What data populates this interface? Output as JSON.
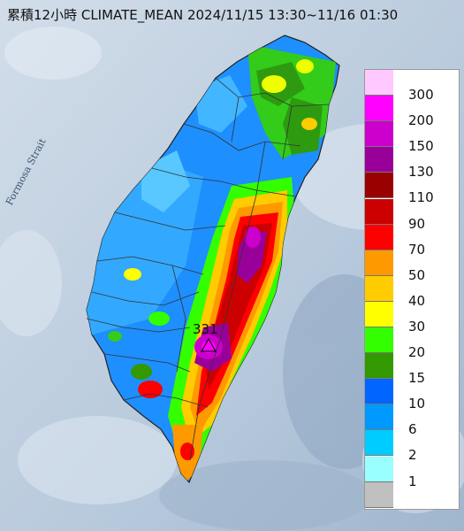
{
  "title": "累積12小時 CLIMATE_MEAN 2024/11/15 13:30~11/16 01:30",
  "strait_label": "Formosa Strait",
  "peak_value": "331",
  "corner_text": "1",
  "legend": [
    {
      "label": "300",
      "color": "#ffc8ff"
    },
    {
      "label": "200",
      "color": "#ff00ff"
    },
    {
      "label": "150",
      "color": "#cc00cc"
    },
    {
      "label": "130",
      "color": "#990099"
    },
    {
      "label": "110",
      "color": "#990000"
    },
    {
      "label": "90",
      "color": "#cc0000"
    },
    {
      "label": "70",
      "color": "#ff0000"
    },
    {
      "label": "50",
      "color": "#ff9900"
    },
    {
      "label": "40",
      "color": "#ffcc00"
    },
    {
      "label": "30",
      "color": "#ffff00"
    },
    {
      "label": "20",
      "color": "#33ff00"
    },
    {
      "label": "15",
      "color": "#339900"
    },
    {
      "label": "10",
      "color": "#0066ff"
    },
    {
      "label": "6",
      "color": "#0099ff"
    },
    {
      "label": "2",
      "color": "#00ccff"
    },
    {
      "label": "1",
      "color": "#99ffff"
    },
    {
      "label": "",
      "color": "#c0c0c0"
    }
  ]
}
